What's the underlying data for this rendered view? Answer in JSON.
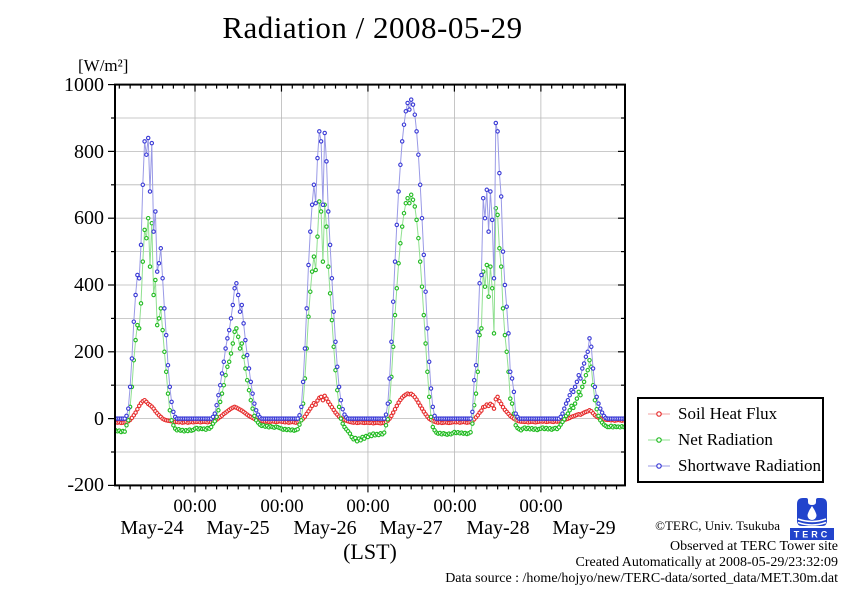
{
  "title": "Radiation / 2008-05-29",
  "y_axis": {
    "unit_label": "[W/m²]",
    "tick_labels": [
      "1000",
      "800",
      "600",
      "400",
      "200",
      "0",
      "-200"
    ]
  },
  "x_axis": {
    "time_tick_labels": [
      "00:00",
      "00:00",
      "00:00",
      "00:00",
      "00:00"
    ],
    "day_labels": [
      "May-24",
      "May-25",
      "May-26",
      "May-27",
      "May-28",
      "May-29"
    ],
    "axis_label": "(LST)"
  },
  "legend": {
    "items": [
      {
        "label": "Soil Heat Flux"
      },
      {
        "label": "Net Radiation"
      },
      {
        "label": "Shortwave Radiation"
      }
    ]
  },
  "footer": {
    "copyright": "©TERC, Univ. Tsukuba",
    "observed": "Observed at TERC Tower site",
    "created": "Created Automatically at 2008-05-29/23:32:09",
    "data_source": "Data source : /home/hojyo/new/TERC-data/sorted_data/MET.30m.dat",
    "logo_text": "TERC",
    "logo_color": "#2244cc"
  },
  "chart_data": {
    "type": "line",
    "title": "Radiation / 2008-05-29",
    "xlabel": "(LST)",
    "ylabel": "[W/m²]",
    "ylim": [
      -200,
      1000
    ],
    "x_unit": "hours since 2008-05-24 00:00 LST",
    "x_range_hours": [
      1.8,
      143.3
    ],
    "x_major_gridlines_hours": [
      24,
      48,
      72,
      96,
      120
    ],
    "x_minor_tick_hours": 3,
    "y_gridline_step": 100,
    "y_major_tick_step": 200,
    "grid": true,
    "legend_position": "outside-right-bottom",
    "t0": 2.0,
    "dt": 0.5,
    "series": [
      {
        "name": "Soil Heat Flux",
        "marker_color": "#e62e2e",
        "line_color": "#f0a0a0",
        "values": [
          -10,
          -12,
          -11,
          -13,
          -12,
          -11,
          -10,
          -8,
          -4,
          2,
          10,
          18,
          28,
          38,
          46,
          52,
          55,
          50,
          44,
          40,
          36,
          30,
          22,
          16,
          10,
          5,
          0,
          -3,
          -5,
          -6,
          -7,
          -8,
          -9,
          -10,
          -10,
          -11,
          -10,
          -12,
          -11,
          -10,
          -12,
          -11,
          -10,
          -11,
          -9,
          -10,
          -9,
          -11,
          -10,
          -9,
          -10,
          -11,
          -9,
          -10,
          -8,
          -6,
          -3,
          1,
          5,
          9,
          14,
          18,
          22,
          26,
          30,
          33,
          35,
          33,
          30,
          27,
          24,
          20,
          16,
          12,
          8,
          5,
          2,
          -1,
          -3,
          -5,
          -6,
          -7,
          -8,
          -9,
          -8,
          -10,
          -9,
          -8,
          -9,
          -10,
          -9,
          -8,
          -9,
          -10,
          -11,
          -10,
          -12,
          -11,
          -10,
          -11,
          -12,
          -10,
          -8,
          -5,
          0,
          6,
          14,
          22,
          30,
          38,
          46,
          42,
          54,
          62,
          65,
          55,
          68,
          60,
          50,
          42,
          34,
          26,
          18,
          12,
          6,
          2,
          -2,
          -4,
          -6,
          -8,
          -10,
          -11,
          -12,
          -11,
          -13,
          -12,
          -11,
          -12,
          -13,
          -12,
          -12,
          -13,
          -12,
          -14,
          -13,
          -12,
          -13,
          -14,
          -13,
          -12,
          -10,
          -6,
          0,
          8,
          18,
          28,
          38,
          48,
          56,
          63,
          68,
          72,
          75,
          73,
          74,
          70,
          64,
          57,
          48,
          39,
          30,
          21,
          13,
          6,
          0,
          -4,
          -7,
          -9,
          -11,
          -12,
          -11,
          -13,
          -12,
          -11,
          -12,
          -13,
          -12,
          -11,
          -10,
          -11,
          -10,
          -12,
          -11,
          -10,
          -11,
          -12,
          -11,
          -10,
          -8,
          -2,
          4,
          10,
          18,
          24,
          34,
          36,
          42,
          38,
          44,
          40,
          30,
          58,
          65,
          52,
          44,
          34,
          26,
          20,
          14,
          8,
          4,
          0,
          -4,
          -6,
          -8,
          -9,
          -9,
          -10,
          -9,
          -11,
          -10,
          -9,
          -10,
          -11,
          -10,
          -9,
          -8,
          -9,
          -8,
          -10,
          -9,
          -8,
          -9,
          -10,
          -8,
          -9,
          -8,
          -7,
          -6,
          -4,
          -2,
          0,
          2,
          5,
          7,
          9,
          11,
          13,
          12,
          15,
          18,
          20,
          22,
          25,
          22,
          16,
          10,
          6,
          3,
          1,
          -1,
          -2,
          -3,
          -4,
          -4,
          -5,
          -4,
          -6,
          -5,
          -4,
          -5,
          -6,
          -5,
          -4
        ]
      },
      {
        "name": "Net Radiation",
        "marker_color": "#22bb22",
        "line_color": "#90e090",
        "values": [
          -35,
          -38,
          -36,
          -40,
          -37,
          -39,
          -20,
          -5,
          35,
          95,
          175,
          235,
          280,
          270,
          345,
          470,
          565,
          540,
          600,
          455,
          585,
          370,
          415,
          280,
          300,
          330,
          265,
          200,
          140,
          75,
          25,
          -5,
          -20,
          -30,
          -35,
          -32,
          -36,
          -34,
          -38,
          -35,
          -37,
          -33,
          -36,
          -34,
          -30,
          -28,
          -32,
          -29,
          -31,
          -30,
          -33,
          -28,
          -30,
          -25,
          -15,
          -8,
          5,
          25,
          50,
          75,
          100,
          130,
          155,
          170,
          195,
          225,
          260,
          270,
          245,
          210,
          225,
          185,
          150,
          115,
          85,
          55,
          30,
          8,
          -5,
          -12,
          -18,
          -22,
          -20,
          -24,
          -22,
          -26,
          -23,
          -25,
          -27,
          -24,
          -26,
          -28,
          -30,
          -33,
          -31,
          -34,
          -32,
          -35,
          -33,
          -36,
          -34,
          -32,
          -18,
          -5,
          45,
          120,
          210,
          305,
          380,
          440,
          485,
          445,
          545,
          650,
          620,
          470,
          640,
          575,
          455,
          375,
          295,
          215,
          145,
          85,
          35,
          0,
          -15,
          -25,
          -32,
          -38,
          -45,
          -55,
          -62,
          -58,
          -68,
          -60,
          -65,
          -55,
          -60,
          -52,
          -55,
          -48,
          -52,
          -45,
          -50,
          -46,
          -49,
          -44,
          -47,
          -42,
          -20,
          -2,
          50,
          125,
          215,
          310,
          390,
          465,
          525,
          575,
          615,
          645,
          660,
          645,
          670,
          655,
          635,
          595,
          540,
          470,
          395,
          310,
          225,
          140,
          65,
          5,
          -25,
          -35,
          -42,
          -45,
          -43,
          -47,
          -44,
          -46,
          -48,
          -45,
          -47,
          -44,
          -40,
          -43,
          -41,
          -44,
          -42,
          -45,
          -43,
          -46,
          -44,
          -41,
          -15,
          40,
          75,
          140,
          250,
          270,
          440,
          395,
          460,
          365,
          455,
          390,
          255,
          630,
          610,
          510,
          455,
          330,
          250,
          200,
          140,
          60,
          45,
          15,
          -20,
          -28,
          -32,
          -35,
          -30,
          -27,
          -31,
          -28,
          -32,
          -29,
          -33,
          -30,
          -34,
          -31,
          -30,
          -27,
          -31,
          -28,
          -32,
          -29,
          -33,
          -30,
          -28,
          -31,
          -26,
          -18,
          -10,
          -2,
          8,
          15,
          25,
          38,
          32,
          45,
          60,
          80,
          70,
          95,
          110,
          130,
          145,
          175,
          155,
          100,
          55,
          28,
          8,
          -5,
          -12,
          -18,
          -22,
          -25,
          -25,
          -22,
          -26,
          -23,
          -25,
          -24,
          -26,
          -23,
          -25,
          -24
        ]
      },
      {
        "name": "Shortwave Radiation",
        "marker_color": "#3a3ad6",
        "line_color": "#9a9ae6",
        "values": [
          0,
          0,
          0,
          0,
          0,
          0,
          8,
          30,
          95,
          180,
          290,
          370,
          430,
          420,
          520,
          700,
          830,
          790,
          840,
          680,
          825,
          560,
          620,
          440,
          465,
          510,
          420,
          330,
          250,
          160,
          95,
          50,
          20,
          5,
          0,
          0,
          0,
          0,
          0,
          0,
          0,
          0,
          0,
          0,
          0,
          0,
          0,
          0,
          0,
          0,
          0,
          0,
          0,
          0,
          5,
          15,
          40,
          70,
          100,
          135,
          170,
          210,
          240,
          265,
          300,
          340,
          390,
          405,
          370,
          320,
          340,
          285,
          235,
          190,
          150,
          110,
          75,
          45,
          25,
          12,
          4,
          0,
          0,
          0,
          0,
          0,
          0,
          0,
          0,
          0,
          0,
          0,
          0,
          0,
          0,
          0,
          0,
          0,
          0,
          0,
          0,
          0,
          10,
          35,
          110,
          210,
          330,
          460,
          560,
          640,
          700,
          645,
          780,
          860,
          830,
          640,
          855,
          770,
          620,
          520,
          420,
          320,
          230,
          155,
          95,
          55,
          28,
          12,
          4,
          0,
          0,
          0,
          0,
          0,
          0,
          0,
          0,
          0,
          0,
          0,
          0,
          0,
          0,
          0,
          0,
          0,
          0,
          0,
          0,
          0,
          12,
          45,
          120,
          230,
          350,
          470,
          580,
          680,
          760,
          830,
          880,
          920,
          945,
          925,
          955,
          940,
          910,
          860,
          790,
          700,
          600,
          490,
          380,
          270,
          170,
          90,
          35,
          8,
          0,
          0,
          0,
          0,
          0,
          0,
          0,
          0,
          0,
          0,
          0,
          0,
          0,
          0,
          0,
          0,
          0,
          0,
          0,
          0,
          20,
          115,
          160,
          260,
          405,
          430,
          660,
          600,
          685,
          560,
          680,
          595,
          420,
          885,
          860,
          735,
          665,
          500,
          400,
          335,
          255,
          140,
          120,
          80,
          15,
          5,
          0,
          0,
          0,
          0,
          0,
          0,
          0,
          0,
          0,
          0,
          0,
          0,
          0,
          0,
          0,
          0,
          0,
          0,
          0,
          0,
          0,
          0,
          0,
          5,
          15,
          30,
          45,
          55,
          70,
          85,
          80,
          95,
          110,
          130,
          120,
          150,
          165,
          185,
          200,
          240,
          215,
          150,
          95,
          65,
          45,
          30,
          18,
          8,
          2,
          0,
          0,
          0,
          0,
          0,
          0,
          0,
          0,
          0,
          0,
          0
        ]
      }
    ]
  }
}
